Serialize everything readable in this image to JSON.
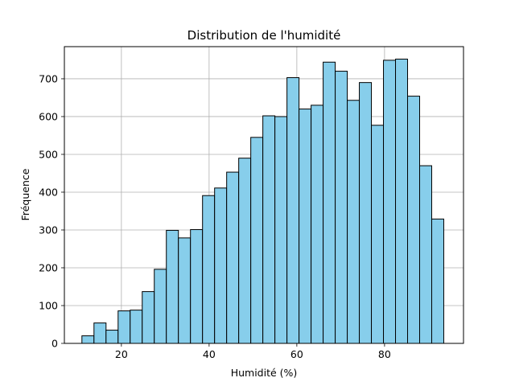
{
  "chart_data": {
    "type": "bar",
    "title": "Distribution de l'humidité",
    "xlabel": "Humidité (%)",
    "ylabel": "Fréquence",
    "xlim": [
      7,
      98
    ],
    "ylim": [
      0,
      785
    ],
    "xticks": [
      20,
      40,
      60,
      80
    ],
    "yticks": [
      0,
      100,
      200,
      300,
      400,
      500,
      600,
      700
    ],
    "grid": true,
    "bar_color": "#87ceeb",
    "edge_color": "#000000",
    "bin_edges": [
      11.0,
      13.75,
      16.5,
      19.25,
      22.0,
      24.75,
      27.5,
      30.25,
      33.0,
      35.75,
      38.5,
      41.25,
      44.0,
      46.75,
      49.5,
      52.25,
      55.0,
      57.75,
      60.5,
      63.25,
      66.0,
      68.75,
      71.5,
      74.25,
      77.0,
      79.75,
      82.5,
      85.25,
      88.0,
      90.75,
      93.5
    ],
    "values": [
      20,
      54,
      35,
      86,
      88,
      137,
      196,
      299,
      279,
      301,
      391,
      411,
      453,
      490,
      545,
      602,
      600,
      703,
      620,
      630,
      744,
      720,
      643,
      690,
      577,
      749,
      752,
      654,
      470,
      329
    ]
  }
}
